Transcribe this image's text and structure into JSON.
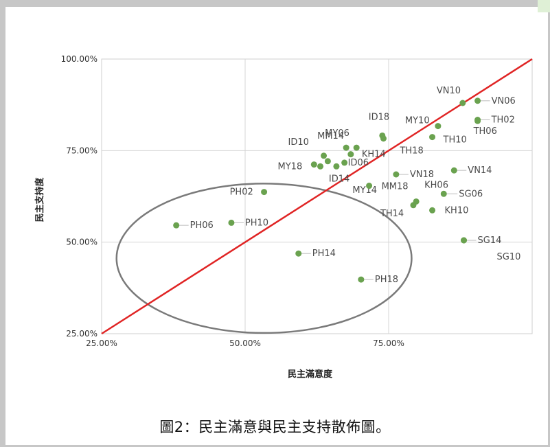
{
  "caption": "圖2：民主滿意與民主支持散佈圖。",
  "chart_data": {
    "type": "scatter",
    "xlabel": "民主滿意度",
    "ylabel": "民主支持度",
    "xlim": [
      25,
      100
    ],
    "ylim": [
      25,
      100
    ],
    "x_ticks": [
      "25.00%",
      "50.00%",
      "75.00%"
    ],
    "y_ticks": [
      "25.00%",
      "50.00%",
      "75.00%",
      "100.00%"
    ],
    "grid": true,
    "point_color": "#6aa24f",
    "line_color": "#e02424",
    "ellipse_color": "#7a7a7a",
    "diagonal": {
      "from": [
        25,
        25
      ],
      "to": [
        100,
        100
      ]
    },
    "ellipse": {
      "cx": 53.3,
      "cy": 45.6,
      "rx": 25.7,
      "ry": 20.4
    },
    "points": [
      {
        "label": "VN10",
        "x": 87.9,
        "y": 88.0
      },
      {
        "label": "VN06",
        "x": 90.5,
        "y": 88.6
      },
      {
        "label": "TH02",
        "x": 90.5,
        "y": 83.4
      },
      {
        "label": "TH06",
        "x": 90.5,
        "y": 83.1
      },
      {
        "label": "TH10",
        "x": 82.6,
        "y": 78.7
      },
      {
        "label": "MY10",
        "x": 83.6,
        "y": 81.7
      },
      {
        "label": "ID18",
        "x": 73.9,
        "y": 79.1
      },
      {
        "label": "TH18",
        "x": 74.1,
        "y": 78.3
      },
      {
        "label": "MY06",
        "x": 69.4,
        "y": 75.8
      },
      {
        "label": "MM14",
        "x": 67.6,
        "y": 75.8
      },
      {
        "label": "KH14",
        "x": 68.4,
        "y": 74.0
      },
      {
        "label": "ID06",
        "x": 67.3,
        "y": 71.7
      },
      {
        "label": "ID10",
        "x": 63.7,
        "y": 73.6
      },
      {
        "label": "MY18",
        "x": 63.1,
        "y": 70.7
      },
      {
        "label": "MY18",
        "x": 62.0,
        "y": 71.2
      },
      {
        "label": "MY14",
        "x": 64.4,
        "y": 72.1
      },
      {
        "label": "ID14",
        "x": 65.9,
        "y": 70.7
      },
      {
        "label": "VN18",
        "x": 76.3,
        "y": 68.5
      },
      {
        "label": "VN14",
        "x": 86.4,
        "y": 69.6
      },
      {
        "label": "MM18",
        "x": 71.6,
        "y": 65.4
      },
      {
        "label": "KH06",
        "x": 79.8,
        "y": 61.1
      },
      {
        "label": "TH14",
        "x": 79.3,
        "y": 60.1
      },
      {
        "label": "SG06",
        "x": 84.6,
        "y": 63.2
      },
      {
        "label": "KH10",
        "x": 82.6,
        "y": 58.7
      },
      {
        "label": "PH02",
        "x": 53.3,
        "y": 63.7
      },
      {
        "label": "PH06",
        "x": 38.0,
        "y": 54.6
      },
      {
        "label": "PH10",
        "x": 47.6,
        "y": 55.3
      },
      {
        "label": "SG14",
        "x": 88.1,
        "y": 50.5
      },
      {
        "label": "SG10",
        "x": 88.1,
        "y": 50.5
      },
      {
        "label": "PH14",
        "x": 59.3,
        "y": 46.9
      },
      {
        "label": "PH18",
        "x": 70.2,
        "y": 39.8
      }
    ]
  }
}
